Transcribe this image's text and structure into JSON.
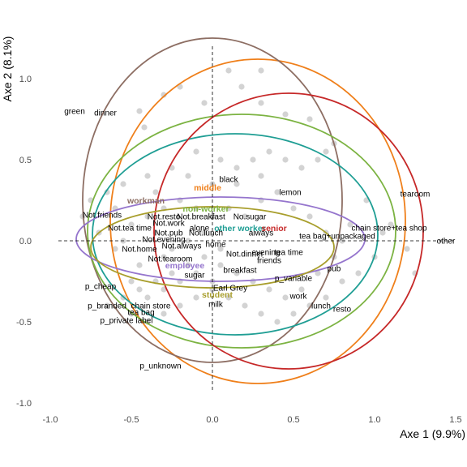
{
  "chart_data": {
    "type": "scatter",
    "xlabel": "Axe 1 (9.9%)",
    "ylabel": "Axe 2 (8.1%)",
    "xlim": [
      -1.0,
      1.5
    ],
    "ylim": [
      -1.0,
      1.2
    ],
    "x_ticks": [
      -1.0,
      -0.5,
      0.0,
      0.5,
      1.0,
      1.5
    ],
    "y_ticks": [
      -1.0,
      -0.5,
      0.0,
      0.5,
      1.0
    ],
    "x_tick_labels": [
      "-1.0",
      "-0.5",
      "0.0",
      "0.5",
      "1.0",
      "1.5"
    ],
    "y_tick_labels": [
      "-1.0",
      "-0.5",
      "0.0",
      "0.5",
      "1.0"
    ],
    "grid": false,
    "reference_lines": {
      "x": 0,
      "y": 0
    },
    "individuals_color": "#d3d3d3",
    "individuals": [
      [
        -0.45,
        0.8
      ],
      [
        -0.42,
        0.7
      ],
      [
        -0.3,
        0.9
      ],
      [
        -0.2,
        0.95
      ],
      [
        0.3,
        1.05
      ],
      [
        0.18,
        0.95
      ],
      [
        0.1,
        1.05
      ],
      [
        -0.05,
        0.85
      ],
      [
        0.3,
        0.85
      ],
      [
        0.45,
        0.78
      ],
      [
        0.6,
        0.75
      ],
      [
        0.75,
        0.6
      ],
      [
        0.55,
        0.45
      ],
      [
        0.7,
        0.55
      ],
      [
        0.65,
        0.5
      ],
      [
        0.45,
        0.5
      ],
      [
        0.35,
        0.55
      ],
      [
        0.25,
        0.5
      ],
      [
        0.15,
        0.45
      ],
      [
        0.05,
        0.5
      ],
      [
        -0.1,
        0.55
      ],
      [
        -0.25,
        0.45
      ],
      [
        -0.4,
        0.4
      ],
      [
        -0.55,
        0.35
      ],
      [
        -0.65,
        0.3
      ],
      [
        -0.75,
        0.25
      ],
      [
        -0.8,
        0.15
      ],
      [
        -0.7,
        0.05
      ],
      [
        -0.6,
        -0.05
      ],
      [
        -0.5,
        0.1
      ],
      [
        -0.4,
        0.15
      ],
      [
        -0.3,
        0.2
      ],
      [
        -0.2,
        0.25
      ],
      [
        -0.1,
        0.2
      ],
      [
        0.0,
        0.15
      ],
      [
        0.1,
        0.2
      ],
      [
        0.2,
        0.15
      ],
      [
        0.3,
        0.25
      ],
      [
        0.4,
        0.3
      ],
      [
        0.5,
        0.2
      ],
      [
        0.6,
        0.15
      ],
      [
        0.7,
        0.05
      ],
      [
        0.8,
        0.0
      ],
      [
        0.75,
        -0.1
      ],
      [
        0.65,
        -0.2
      ],
      [
        0.55,
        -0.3
      ],
      [
        0.45,
        -0.35
      ],
      [
        0.35,
        -0.3
      ],
      [
        0.25,
        -0.25
      ],
      [
        0.15,
        -0.2
      ],
      [
        0.05,
        -0.15
      ],
      [
        -0.05,
        -0.1
      ],
      [
        -0.15,
        -0.15
      ],
      [
        -0.25,
        -0.2
      ],
      [
        -0.35,
        -0.25
      ],
      [
        -0.45,
        -0.3
      ],
      [
        -0.55,
        -0.35
      ],
      [
        -0.65,
        -0.4
      ],
      [
        -0.5,
        -0.45
      ],
      [
        -0.4,
        -0.5
      ],
      [
        -0.3,
        -0.45
      ],
      [
        -0.2,
        -0.4
      ],
      [
        -0.1,
        -0.35
      ],
      [
        0.0,
        -0.3
      ],
      [
        0.1,
        -0.35
      ],
      [
        0.2,
        -0.4
      ],
      [
        0.3,
        -0.45
      ],
      [
        0.4,
        -0.5
      ],
      [
        0.5,
        -0.45
      ],
      [
        0.6,
        -0.4
      ],
      [
        0.7,
        -0.35
      ],
      [
        0.8,
        -0.25
      ],
      [
        0.9,
        -0.2
      ],
      [
        1.0,
        -0.1
      ],
      [
        1.05,
        0.05
      ],
      [
        1.1,
        0.1
      ],
      [
        1.2,
        -0.05
      ],
      [
        1.25,
        -0.2
      ],
      [
        0.85,
        0.1
      ],
      [
        0.95,
        0.25
      ],
      [
        -0.35,
        0.05
      ],
      [
        -0.25,
        -0.05
      ],
      [
        -0.15,
        0.0
      ],
      [
        -0.05,
        0.05
      ],
      [
        0.05,
        -0.05
      ],
      [
        -0.3,
        -0.1
      ],
      [
        -0.2,
        -0.25
      ],
      [
        -0.1,
        -0.2
      ],
      [
        0.0,
        -0.25
      ],
      [
        -0.45,
        -0.15
      ],
      [
        -0.5,
        -0.25
      ],
      [
        -0.4,
        -0.35
      ],
      [
        -0.3,
        -0.3
      ],
      [
        -0.6,
        0.2
      ],
      [
        -0.55,
        0.0
      ],
      [
        -0.35,
        0.3
      ],
      [
        0.0,
        0.35
      ],
      [
        0.15,
        0.35
      ],
      [
        0.3,
        0.4
      ],
      [
        -0.15,
        0.4
      ]
    ],
    "variable_labels": [
      {
        "text": "green",
        "x": -0.85,
        "y": 0.8
      },
      {
        "text": "dinner",
        "x": -0.66,
        "y": 0.79
      },
      {
        "text": "black",
        "x": 0.1,
        "y": 0.38
      },
      {
        "text": "lemon",
        "x": 0.48,
        "y": 0.3
      },
      {
        "text": "tearoom",
        "x": 1.25,
        "y": 0.29
      },
      {
        "text": "No.sugar",
        "x": 0.23,
        "y": 0.15
      },
      {
        "text": "Not.friends",
        "x": -0.68,
        "y": 0.16
      },
      {
        "text": "Not.resto",
        "x": -0.3,
        "y": 0.15
      },
      {
        "text": "Not.breakfast",
        "x": -0.07,
        "y": 0.15
      },
      {
        "text": "Not.tea time",
        "x": -0.51,
        "y": 0.08
      },
      {
        "text": "Not.work",
        "x": -0.27,
        "y": 0.11
      },
      {
        "text": "alone",
        "x": -0.08,
        "y": 0.08
      },
      {
        "text": "Not.pub",
        "x": -0.27,
        "y": 0.05
      },
      {
        "text": "Not.lunch",
        "x": -0.04,
        "y": 0.05
      },
      {
        "text": "always",
        "x": 0.3,
        "y": 0.05
      },
      {
        "text": "chain store+tea shop",
        "x": 1.09,
        "y": 0.08
      },
      {
        "text": "tea bag+unpackaged",
        "x": 0.77,
        "y": 0.03
      },
      {
        "text": "other",
        "x": 1.44,
        "y": 0.0
      },
      {
        "text": "Not.evening",
        "x": -0.3,
        "y": 0.01
      },
      {
        "text": "home",
        "x": 0.02,
        "y": -0.02
      },
      {
        "text": "Not.home",
        "x": -0.45,
        "y": -0.05
      },
      {
        "text": "Not.always",
        "x": -0.19,
        "y": -0.03
      },
      {
        "text": "Not.dinner",
        "x": 0.2,
        "y": -0.08
      },
      {
        "text": "evening",
        "x": 0.33,
        "y": -0.07
      },
      {
        "text": "tea time",
        "x": 0.47,
        "y": -0.07
      },
      {
        "text": "friends",
        "x": 0.35,
        "y": -0.12
      },
      {
        "text": "Not.tearoom",
        "x": -0.26,
        "y": -0.11
      },
      {
        "text": "breakfast",
        "x": 0.17,
        "y": -0.18
      },
      {
        "text": "sugar",
        "x": -0.11,
        "y": -0.21
      },
      {
        "text": "pub",
        "x": 0.75,
        "y": -0.17
      },
      {
        "text": "p_variable",
        "x": 0.5,
        "y": -0.23
      },
      {
        "text": "p_cheap",
        "x": -0.69,
        "y": -0.28
      },
      {
        "text": "Earl Grey",
        "x": 0.11,
        "y": -0.29
      },
      {
        "text": "work",
        "x": 0.53,
        "y": -0.34
      },
      {
        "text": "milk",
        "x": 0.02,
        "y": -0.39
      },
      {
        "text": "p_branded",
        "x": -0.65,
        "y": -0.4
      },
      {
        "text": "chain store",
        "x": -0.38,
        "y": -0.4
      },
      {
        "text": "lunch",
        "x": 0.67,
        "y": -0.4
      },
      {
        "text": "resto",
        "x": 0.8,
        "y": -0.42
      },
      {
        "text": "tea bag",
        "x": -0.44,
        "y": -0.44
      },
      {
        "text": "p_private label",
        "x": -0.53,
        "y": -0.49
      },
      {
        "text": "p_unknown",
        "x": -0.32,
        "y": -0.77
      }
    ],
    "series": [
      {
        "name": "middle",
        "color": "#ef7f1a",
        "label_x": -0.03,
        "label_y": 0.33,
        "cx": 0.28,
        "cy": 0.12,
        "rx": 0.91,
        "ry": 1.0
      },
      {
        "name": "workman",
        "color": "#8d6e63",
        "label_x": -0.41,
        "label_y": 0.25,
        "cx": 0.0,
        "cy": 0.25,
        "rx": 0.8,
        "ry": 1.0
      },
      {
        "name": "non-worker",
        "color": "#7cb342",
        "label_x": -0.04,
        "label_y": 0.2,
        "cx": 0.18,
        "cy": 0.06,
        "rx": 0.95,
        "ry": 0.72
      },
      {
        "name": "other worker",
        "color": "#1f9e94",
        "label_x": 0.17,
        "label_y": 0.08,
        "cx": 0.14,
        "cy": 0.04,
        "rx": 0.88,
        "ry": 0.62
      },
      {
        "name": "senior",
        "color": "#c62828",
        "label_x": 0.38,
        "label_y": 0.08,
        "cx": 0.47,
        "cy": 0.06,
        "rx": 0.83,
        "ry": 0.85
      },
      {
        "name": "employee",
        "color": "#9575cd",
        "label_x": -0.17,
        "label_y": -0.15,
        "cx": 0.05,
        "cy": 0.01,
        "rx": 0.89,
        "ry": 0.26
      },
      {
        "name": "student",
        "color": "#a89e2c",
        "label_x": 0.03,
        "label_y": -0.33,
        "cx": 0.0,
        "cy": -0.04,
        "rx": 0.75,
        "ry": 0.25
      }
    ]
  }
}
